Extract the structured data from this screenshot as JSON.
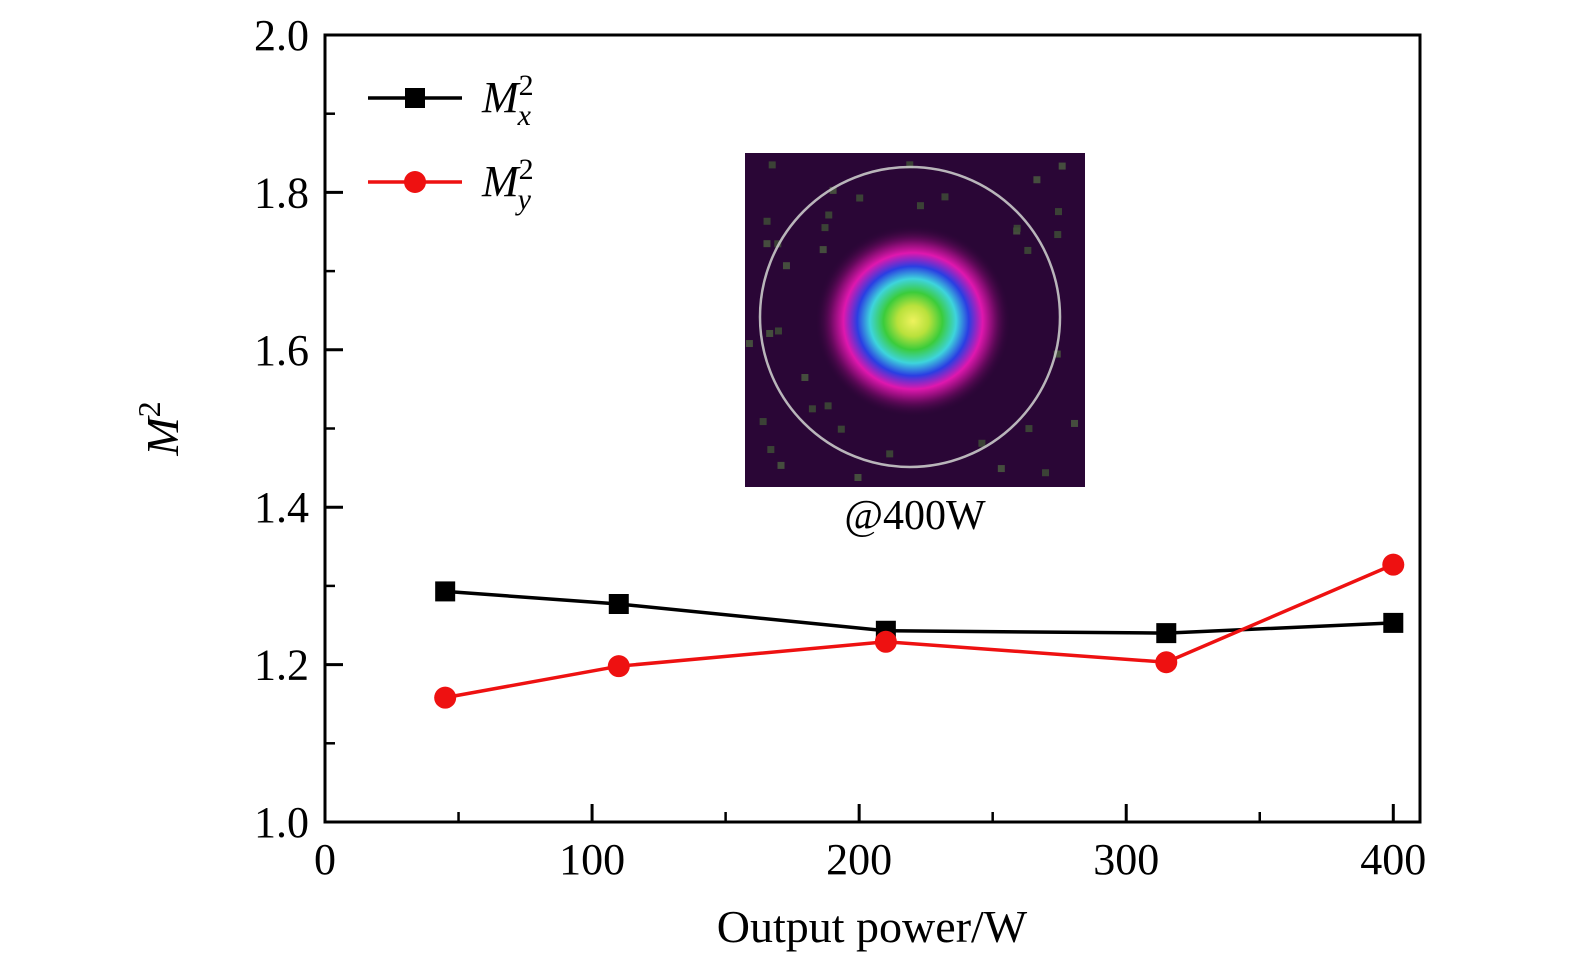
{
  "figure": {
    "background": "#ffffff"
  },
  "chart_data": {
    "type": "line",
    "title": "",
    "xlabel": "Output power/W",
    "ylabel_base": "M",
    "ylabel_sup": "2",
    "xlim": [
      0,
      410
    ],
    "ylim": [
      1.0,
      2.0
    ],
    "xticks": [
      0,
      100,
      200,
      300,
      400
    ],
    "minor_xticks": [
      50,
      150,
      250,
      350
    ],
    "yticks": [
      1.0,
      1.2,
      1.4,
      1.6,
      1.8,
      2.0
    ],
    "minor_yticks": [
      1.1,
      1.3,
      1.5,
      1.7,
      1.9
    ],
    "grid": false,
    "legend_position": "top-left",
    "x": [
      45,
      110,
      210,
      315,
      400
    ],
    "series": [
      {
        "name": "Mx2",
        "label_base": "M",
        "label_sup": "2",
        "label_sub": "x",
        "color": "#000000",
        "marker": "square",
        "values": [
          1.293,
          1.277,
          1.243,
          1.24,
          1.253
        ]
      },
      {
        "name": "My2",
        "label_base": "M",
        "label_sup": "2",
        "label_sub": "y",
        "color": "#ee1111",
        "marker": "circle",
        "values": [
          1.158,
          1.198,
          1.229,
          1.203,
          1.327
        ]
      }
    ]
  },
  "inset": {
    "caption": "@400W"
  }
}
